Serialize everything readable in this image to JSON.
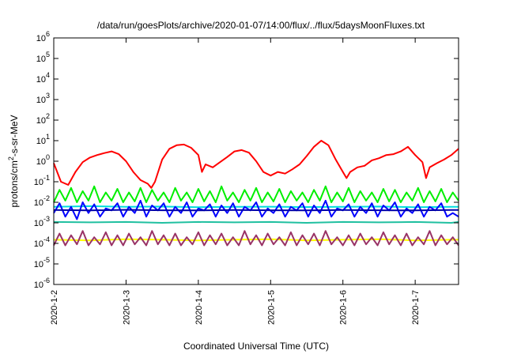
{
  "chart_data": {
    "type": "line",
    "title": "/data/run/goesPlots/archive/2020-01-07/14:00/flux/../flux/5daysMoonFluxes.txt",
    "xlabel": "Coordinated Universal Time (UTC)",
    "ylabel_prefix": "protons/cm",
    "ylabel_sup": "2",
    "ylabel_suffix": "-s-sr-MeV",
    "y_scale": "log",
    "ylim": [
      1e-06,
      1000000.0
    ],
    "xlim_days": [
      0,
      5.6
    ],
    "grid": false,
    "legend": "none",
    "x_ticks": [
      {
        "day": 0,
        "label": "2020-1-2"
      },
      {
        "day": 1,
        "label": "2020-1-3"
      },
      {
        "day": 2,
        "label": "2020-1-4"
      },
      {
        "day": 3,
        "label": "2020-1-5"
      },
      {
        "day": 4,
        "label": "2020-1-6"
      },
      {
        "day": 5,
        "label": "2020-1-7"
      }
    ],
    "y_ticks": [
      {
        "base": "10",
        "exp": "-6"
      },
      {
        "base": "10",
        "exp": "-5"
      },
      {
        "base": "10",
        "exp": "-4"
      },
      {
        "base": "10",
        "exp": "-3"
      },
      {
        "base": "10",
        "exp": "-2"
      },
      {
        "base": "10",
        "exp": "-1"
      },
      {
        "base": "10",
        "exp": "0"
      },
      {
        "base": "10",
        "exp": "1"
      },
      {
        "base": "10",
        "exp": "2"
      },
      {
        "base": "10",
        "exp": "3"
      },
      {
        "base": "10",
        "exp": "4"
      },
      {
        "base": "10",
        "exp": "5"
      },
      {
        "base": "10",
        "exp": "6"
      }
    ],
    "series": [
      {
        "color": "#ff0000",
        "width": 2,
        "x": [
          0,
          0.1,
          0.2,
          0.3,
          0.4,
          0.5,
          0.6,
          0.7,
          0.8,
          0.9,
          1.0,
          1.1,
          1.2,
          1.3,
          1.35,
          1.4,
          1.5,
          1.6,
          1.7,
          1.8,
          1.9,
          2.0,
          2.05,
          2.1,
          2.2,
          2.3,
          2.4,
          2.5,
          2.6,
          2.7,
          2.8,
          2.9,
          3.0,
          3.1,
          3.2,
          3.3,
          3.4,
          3.5,
          3.6,
          3.7,
          3.8,
          3.9,
          4.0,
          4.05,
          4.1,
          4.2,
          4.3,
          4.4,
          4.5,
          4.6,
          4.7,
          4.8,
          4.9,
          5.0,
          5.1,
          5.15,
          5.2,
          5.3,
          5.4,
          5.5,
          5.6
        ],
        "y": [
          0.8,
          0.1,
          0.07,
          0.3,
          0.9,
          1.5,
          2.0,
          2.5,
          3.0,
          2.2,
          1.0,
          0.3,
          0.12,
          0.08,
          0.05,
          0.1,
          1.2,
          4.0,
          6.0,
          6.5,
          4.5,
          2.0,
          0.3,
          0.7,
          0.5,
          0.9,
          1.6,
          3.0,
          3.5,
          2.6,
          1.0,
          0.3,
          0.2,
          0.3,
          0.25,
          0.4,
          0.7,
          1.8,
          5.0,
          10.0,
          6.0,
          1.2,
          0.3,
          0.15,
          0.3,
          0.5,
          0.6,
          1.1,
          1.4,
          2.0,
          2.2,
          3.0,
          5.0,
          2.0,
          0.9,
          0.15,
          0.5,
          0.8,
          1.2,
          2.0,
          4.0
        ]
      },
      {
        "color": "#00ee00",
        "width": 2,
        "x": [
          0,
          0.08,
          0.16,
          0.24,
          0.32,
          0.4,
          0.48,
          0.56,
          0.64,
          0.72,
          0.8,
          0.88,
          0.96,
          1.04,
          1.12,
          1.2,
          1.28,
          1.36,
          1.44,
          1.52,
          1.6,
          1.68,
          1.76,
          1.84,
          1.92,
          2.0,
          2.08,
          2.16,
          2.24,
          2.32,
          2.4,
          2.48,
          2.56,
          2.64,
          2.72,
          2.8,
          2.88,
          2.96,
          3.04,
          3.12,
          3.2,
          3.28,
          3.36,
          3.44,
          3.52,
          3.6,
          3.68,
          3.76,
          3.84,
          3.92,
          4.0,
          4.08,
          4.16,
          4.24,
          4.32,
          4.4,
          4.48,
          4.56,
          4.64,
          4.72,
          4.8,
          4.88,
          4.96,
          5.04,
          5.12,
          5.2,
          5.28,
          5.36,
          5.44,
          5.52,
          5.6
        ],
        "y": [
          0.01,
          0.04,
          0.012,
          0.05,
          0.01,
          0.035,
          0.012,
          0.06,
          0.01,
          0.03,
          0.012,
          0.045,
          0.01,
          0.03,
          0.011,
          0.05,
          0.01,
          0.04,
          0.012,
          0.03,
          0.01,
          0.05,
          0.012,
          0.03,
          0.01,
          0.045,
          0.011,
          0.035,
          0.01,
          0.06,
          0.012,
          0.03,
          0.01,
          0.04,
          0.012,
          0.05,
          0.01,
          0.03,
          0.011,
          0.045,
          0.01,
          0.035,
          0.012,
          0.03,
          0.01,
          0.04,
          0.012,
          0.06,
          0.01,
          0.03,
          0.011,
          0.05,
          0.01,
          0.035,
          0.012,
          0.03,
          0.01,
          0.045,
          0.011,
          0.04,
          0.01,
          0.03,
          0.012,
          0.05,
          0.01,
          0.035,
          0.011,
          0.045,
          0.01,
          0.03,
          0.012
        ]
      },
      {
        "color": "#00dddd",
        "width": 2,
        "x": [
          0,
          0.5,
          1.0,
          1.5,
          2.0,
          2.5,
          3.0,
          3.5,
          4.0,
          4.5,
          5.0,
          5.5,
          5.6
        ],
        "y": [
          0.006,
          0.0065,
          0.006,
          0.0062,
          0.0058,
          0.006,
          0.0061,
          0.0059,
          0.006,
          0.0062,
          0.0058,
          0.006,
          0.006
        ]
      },
      {
        "color": "#0000ff",
        "width": 2,
        "x": [
          0,
          0.08,
          0.16,
          0.24,
          0.32,
          0.4,
          0.48,
          0.56,
          0.64,
          0.72,
          0.8,
          0.88,
          0.96,
          1.04,
          1.12,
          1.2,
          1.28,
          1.36,
          1.44,
          1.52,
          1.6,
          1.68,
          1.76,
          1.84,
          1.92,
          2.0,
          2.08,
          2.16,
          2.24,
          2.32,
          2.4,
          2.48,
          2.56,
          2.64,
          2.72,
          2.8,
          2.88,
          2.96,
          3.04,
          3.12,
          3.2,
          3.28,
          3.36,
          3.44,
          3.52,
          3.6,
          3.68,
          3.76,
          3.84,
          3.92,
          4.0,
          4.08,
          4.16,
          4.24,
          4.32,
          4.4,
          4.48,
          4.56,
          4.64,
          4.72,
          4.8,
          4.88,
          4.96,
          5.04,
          5.12,
          5.2,
          5.28,
          5.36,
          5.44,
          5.52,
          5.6
        ],
        "y": [
          0.003,
          0.009,
          0.002,
          0.006,
          0.0015,
          0.01,
          0.003,
          0.008,
          0.002,
          0.005,
          0.004,
          0.009,
          0.002,
          0.006,
          0.003,
          0.012,
          0.002,
          0.007,
          0.004,
          0.009,
          0.002,
          0.006,
          0.003,
          0.01,
          0.002,
          0.005,
          0.004,
          0.008,
          0.002,
          0.007,
          0.003,
          0.009,
          0.002,
          0.006,
          0.004,
          0.01,
          0.002,
          0.005,
          0.003,
          0.008,
          0.002,
          0.006,
          0.004,
          0.009,
          0.002,
          0.007,
          0.003,
          0.012,
          0.002,
          0.005,
          0.004,
          0.008,
          0.002,
          0.006,
          0.003,
          0.009,
          0.002,
          0.007,
          0.004,
          0.01,
          0.002,
          0.005,
          0.003,
          0.008,
          0.002,
          0.006,
          0.004,
          0.009,
          0.002,
          0.003,
          0.002
        ]
      },
      {
        "color": "#0000aa",
        "width": 2,
        "x": [
          0,
          0.5,
          1.0,
          1.5,
          2.0,
          2.5,
          3.0,
          3.5,
          4.0,
          4.5,
          5.0,
          5.5,
          5.6
        ],
        "y": [
          0.0042,
          0.004,
          0.0043,
          0.0041,
          0.004,
          0.0042,
          0.0041,
          0.004,
          0.0042,
          0.0041,
          0.004,
          0.0042,
          0.0042
        ]
      },
      {
        "color": "#20c0a0",
        "width": 2,
        "x": [
          0,
          0.5,
          1.0,
          1.5,
          2.0,
          2.5,
          3.0,
          3.5,
          4.0,
          4.5,
          5.0,
          5.5,
          5.6
        ],
        "y": [
          0.0011,
          0.00105,
          0.0011,
          0.001,
          0.0011,
          0.00105,
          0.0011,
          0.001,
          0.0011,
          0.00105,
          0.0011,
          0.001,
          0.0011
        ]
      },
      {
        "color": "#ffff00",
        "width": 2,
        "x": [
          0,
          0.5,
          1.0,
          1.5,
          2.0,
          2.5,
          3.0,
          3.5,
          4.0,
          4.5,
          5.0,
          5.5,
          5.6
        ],
        "y": [
          0.00015,
          0.00014,
          0.00016,
          0.00015,
          0.00014,
          0.00015,
          0.00016,
          0.00014,
          0.00015,
          0.00016,
          0.00014,
          0.00015,
          0.00015
        ]
      },
      {
        "color": "#993366",
        "width": 2,
        "x": [
          0,
          0.08,
          0.16,
          0.24,
          0.32,
          0.4,
          0.48,
          0.56,
          0.64,
          0.72,
          0.8,
          0.88,
          0.96,
          1.04,
          1.12,
          1.2,
          1.28,
          1.36,
          1.44,
          1.52,
          1.6,
          1.68,
          1.76,
          1.84,
          1.92,
          2.0,
          2.08,
          2.16,
          2.24,
          2.32,
          2.4,
          2.48,
          2.56,
          2.64,
          2.72,
          2.8,
          2.88,
          2.96,
          3.04,
          3.12,
          3.2,
          3.28,
          3.36,
          3.44,
          3.52,
          3.6,
          3.68,
          3.76,
          3.84,
          3.92,
          4.0,
          4.08,
          4.16,
          4.24,
          4.32,
          4.4,
          4.48,
          4.56,
          4.64,
          4.72,
          4.8,
          4.88,
          4.96,
          5.04,
          5.12,
          5.2,
          5.28,
          5.36,
          5.44,
          5.52,
          5.6
        ],
        "y": [
          8e-05,
          0.0003,
          8e-05,
          0.00025,
          9e-05,
          0.0004,
          8e-05,
          0.0002,
          9e-05,
          0.00035,
          8e-05,
          0.00025,
          8e-05,
          0.0003,
          9e-05,
          0.0002,
          8e-05,
          0.0004,
          9e-05,
          0.00025,
          8e-05,
          0.0003,
          8e-05,
          0.0002,
          9e-05,
          0.00035,
          8e-05,
          0.00025,
          9e-05,
          0.0003,
          8e-05,
          0.0002,
          8e-05,
          0.0004,
          9e-05,
          0.00025,
          8e-05,
          0.0003,
          9e-05,
          0.0002,
          8e-05,
          0.00035,
          8e-05,
          0.00025,
          9e-05,
          0.0003,
          8e-05,
          0.0004,
          9e-05,
          0.0002,
          8e-05,
          0.00025,
          8e-05,
          0.0003,
          9e-05,
          0.0002,
          8e-05,
          0.00035,
          9e-05,
          0.00025,
          8e-05,
          0.0003,
          8e-05,
          0.0002,
          9e-05,
          0.0004,
          8e-05,
          0.00025,
          9e-05,
          0.0002,
          8e-05
        ]
      }
    ]
  }
}
